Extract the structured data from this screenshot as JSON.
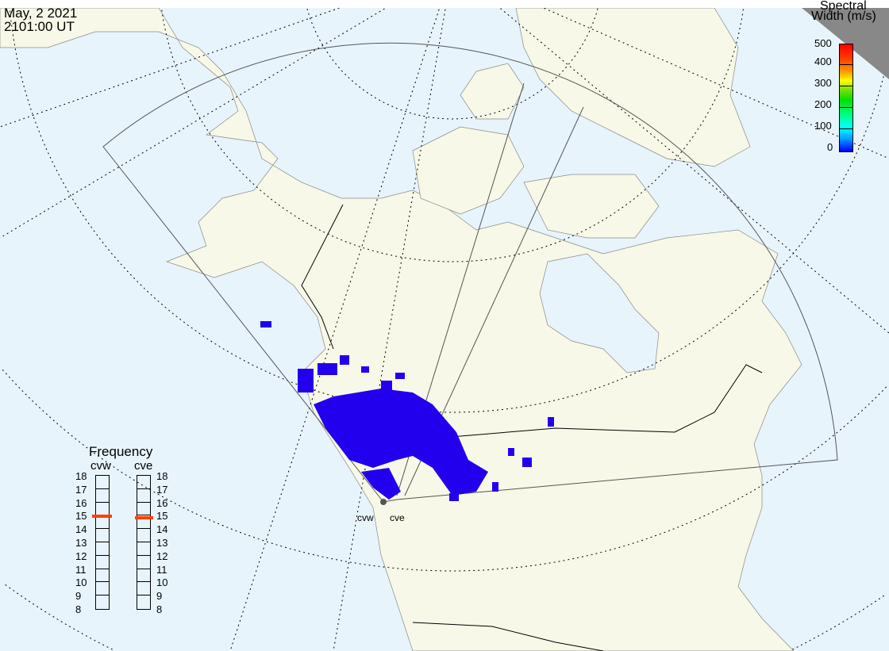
{
  "header": {
    "date": "May, 2 2021",
    "time": "2101:00 UT"
  },
  "colorbar": {
    "title_line1": "Spectral",
    "title_line2": "Width (m/s)",
    "ticks": [
      "500",
      "400",
      "300",
      "200",
      "100",
      "0"
    ],
    "min": 0,
    "max": 500
  },
  "frequency": {
    "title": "Frequency",
    "radars": [
      {
        "name": "cvw",
        "value_mhz": 14.9
      },
      {
        "name": "cve",
        "value_mhz": 14.8
      }
    ],
    "ticks": [
      "18",
      "17",
      "16",
      "15",
      "14",
      "13",
      "12",
      "11",
      "10",
      "9",
      "8"
    ]
  },
  "radar_labels": [
    "cvw",
    "cve"
  ],
  "colors": {
    "ocean": "#e8f4fc",
    "land": "#f8f8e8",
    "scatter": "#2200ee",
    "freq_marker": "#ff4000"
  }
}
